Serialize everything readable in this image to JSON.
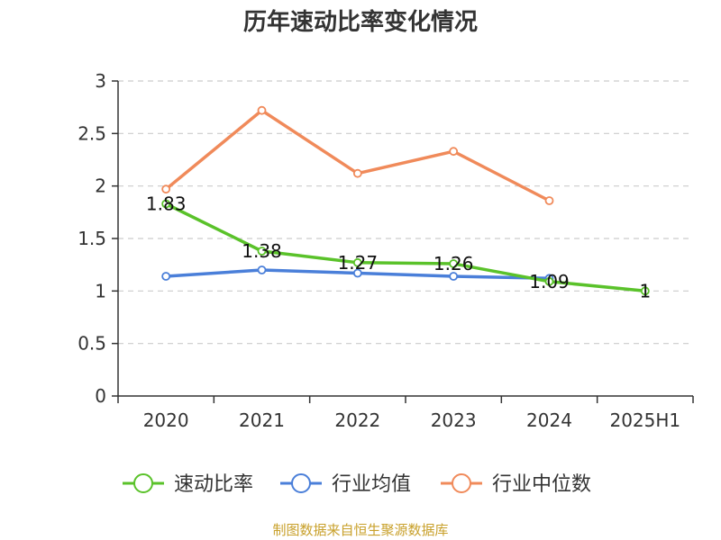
{
  "source_note": "制图数据来自恒生聚源数据库",
  "chart_data": {
    "type": "line",
    "title": "历年速动比率变化情况",
    "categories": [
      "2020",
      "2021",
      "2022",
      "2023",
      "2024",
      "2025H1"
    ],
    "ylim": [
      0,
      3
    ],
    "yticks": [
      "0",
      "0.5",
      "1",
      "1.5",
      "2",
      "2.5",
      "3"
    ],
    "grid": true,
    "legend_position": "bottom",
    "series": [
      {
        "name": "速动比率",
        "color": "#5ac22a",
        "values": [
          1.83,
          1.38,
          1.27,
          1.26,
          1.09,
          1
        ],
        "labels": [
          "1.83",
          "1.38",
          "1.27",
          "1.26",
          "1.09",
          "1"
        ]
      },
      {
        "name": "行业均值",
        "color": "#4a7fd9",
        "values": [
          1.14,
          1.2,
          1.17,
          1.14,
          1.12,
          null
        ]
      },
      {
        "name": "行业中位数",
        "color": "#f08a5a",
        "values": [
          1.97,
          2.72,
          2.12,
          2.33,
          1.86,
          null
        ]
      }
    ]
  }
}
